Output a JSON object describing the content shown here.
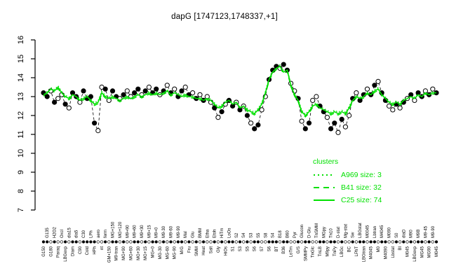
{
  "title": "dapG [1747123,1748337,+1]",
  "legend": {
    "title": "clusters",
    "entries": [
      {
        "label": "A969 size: 3",
        "name": "A969",
        "size": 3,
        "style": "dotted"
      },
      {
        "label": "B41 size: 32",
        "name": "B41",
        "size": 32,
        "style": "dashed"
      },
      {
        "label": "C25 size: 74",
        "name": "C25",
        "size": 74,
        "style": "solid"
      }
    ],
    "color": "#00e000"
  },
  "chart_data": {
    "type": "line",
    "title": "dapG [1747123,1748337,+1]",
    "xlabel": "",
    "ylabel": "",
    "ylim": [
      7,
      16
    ],
    "yticks": [
      7,
      8,
      9,
      10,
      11,
      12,
      13,
      14,
      15,
      16
    ],
    "grid": false,
    "legend_position": "right-bottom",
    "colors": {
      "gene_points": "#000000",
      "cluster_lines": "#00e000"
    },
    "categories": [
      "G150",
      "G135",
      "G180",
      "H2O2",
      "Paraq",
      "Oxcl",
      "LBGexp",
      "dia15",
      "Diam",
      "dia5",
      "C90",
      "C30",
      "Cold",
      "LPh",
      "HPh",
      "aero",
      "nt",
      "ferm",
      "GM+150",
      "MG+150",
      "M9-tran",
      "MG+120",
      "MG+90",
      "M9+90",
      "MG+60",
      "M9+60",
      "MG+30",
      "M9+30",
      "MG+15",
      "M9+15",
      "MG+0",
      "M9+0",
      "MG-30",
      "M9-30",
      "MG-60",
      "M9-60",
      "MG-90",
      "M9-90",
      "M/G",
      "Mal",
      "Fru",
      "Glu",
      "SMM",
      "BMM",
      "Heat",
      "Etha",
      "Salt",
      "Etoh",
      "Gly",
      "HiTm",
      "HiOs",
      "LoOs",
      "S1",
      "S2",
      "S3",
      "S4",
      "S5",
      "S3",
      "S6",
      "S5",
      "S7",
      "S8",
      "S6",
      "S4",
      "BT",
      "B18",
      "B36",
      "B60",
      "LoTm",
      "Pyr",
      "G/S",
      "Glucon",
      "SMMPy",
      "D-Glu",
      "TnGlc",
      "TnSMM",
      "TnLB",
      "MGpy",
      "M9py",
      "Tn10",
      "TnPy",
      "D-stat",
      "LBGc",
      "Mg-stat",
      "BC",
      "Sw",
      "LPhT",
      "LBGstat",
      "LBGtran",
      "M0045",
      "M4045",
      "Lbtran",
      "M0",
      "M4045",
      "M4090",
      "M090",
      "Lbstat",
      "S0",
      "BI",
      "diaD",
      "M045",
      "M90",
      "LBGexp",
      "M9B",
      "MG45",
      "M9-45",
      "MG90",
      "M9-90",
      "M045"
    ],
    "series": [
      {
        "name": "gene dapG (points)",
        "marker": "circle-filled-or-open",
        "values": [
          13.2,
          13.0,
          13.3,
          12.7,
          12.9,
          13.1,
          12.6,
          12.4,
          13.2,
          13.0,
          12.7,
          13.3,
          12.9,
          13.0,
          11.6,
          11.2,
          13.5,
          13.4,
          12.8,
          13.3,
          13.0,
          12.9,
          13.1,
          13.3,
          13.0,
          13.2,
          13.4,
          13.1,
          13.3,
          13.5,
          13.2,
          13.4,
          13.1,
          13.3,
          13.6,
          13.2,
          13.4,
          13.0,
          13.3,
          13.5,
          13.1,
          13.2,
          12.9,
          13.1,
          12.8,
          13.0,
          12.7,
          12.4,
          11.9,
          12.2,
          12.6,
          12.8,
          12.5,
          12.7,
          12.3,
          12.5,
          12.0,
          11.6,
          11.3,
          11.5,
          12.3,
          13.0,
          13.9,
          14.4,
          14.6,
          14.5,
          14.7,
          14.4,
          13.7,
          13.3,
          12.9,
          11.7,
          11.3,
          11.6,
          12.8,
          13.0,
          12.5,
          12.2,
          11.9,
          11.3,
          11.6,
          11.1,
          11.8,
          11.4,
          12.0,
          12.9,
          13.2,
          12.8,
          13.1,
          13.4,
          13.1,
          13.6,
          13.8,
          13.2,
          12.8,
          12.5,
          12.3,
          12.6,
          12.4,
          12.7,
          12.9,
          13.1,
          12.8,
          13.2,
          13.0,
          13.3,
          13.1,
          13.4,
          13.2
        ],
        "point_filled": [
          1,
          1,
          0,
          1,
          0,
          0,
          1,
          0,
          1,
          1,
          0,
          1,
          1,
          1,
          1,
          0,
          0,
          1,
          0,
          1,
          1,
          0,
          1,
          0,
          0,
          1,
          1,
          0,
          1,
          0,
          1,
          1,
          0,
          1,
          0,
          1,
          0,
          1,
          1,
          0,
          1,
          0,
          1,
          0,
          1,
          0,
          0,
          1,
          0,
          1,
          0,
          1,
          1,
          0,
          1,
          0,
          1,
          0,
          1,
          1,
          0,
          0,
          1,
          1,
          1,
          0,
          1,
          1,
          0,
          0,
          1,
          0,
          1,
          1,
          0,
          0,
          1,
          1,
          0,
          1,
          1,
          0,
          1,
          0,
          0,
          1,
          0,
          1,
          1,
          0,
          1,
          1,
          0,
          1,
          1,
          0,
          0,
          1,
          0,
          1,
          0,
          1,
          0,
          1,
          1,
          0,
          1,
          0,
          1
        ]
      },
      {
        "name": "cluster mean (C25 / B41 / A969, overlapping)",
        "values": [
          13.1,
          13.2,
          13.4,
          13.3,
          13.5,
          13.2,
          13.0,
          12.9,
          13.1,
          13.0,
          12.8,
          12.9,
          13.0,
          12.8,
          12.6,
          12.7,
          13.2,
          13.0,
          12.9,
          13.0,
          12.9,
          12.8,
          12.9,
          13.0,
          12.9,
          13.0,
          13.1,
          13.0,
          13.1,
          13.2,
          13.1,
          13.2,
          13.1,
          13.2,
          13.3,
          13.1,
          13.2,
          13.1,
          13.0,
          13.1,
          13.0,
          13.0,
          12.9,
          12.9,
          12.8,
          12.9,
          12.8,
          12.6,
          12.4,
          12.5,
          12.7,
          12.8,
          12.6,
          12.7,
          12.4,
          12.5,
          12.3,
          12.2,
          12.1,
          12.3,
          12.6,
          13.2,
          13.9,
          14.3,
          14.5,
          14.6,
          14.3,
          14.4,
          13.6,
          13.1,
          12.8,
          12.2,
          12.0,
          12.2,
          12.5,
          12.6,
          12.4,
          12.3,
          12.2,
          12.1,
          12.2,
          12.1,
          12.2,
          12.1,
          12.4,
          12.8,
          13.0,
          12.9,
          13.0,
          13.2,
          13.1,
          13.3,
          13.4,
          13.1,
          12.9,
          12.7,
          12.6,
          12.7,
          12.6,
          12.8,
          12.9,
          13.0,
          12.9,
          13.1,
          13.0,
          13.2,
          13.1,
          13.2,
          13.2
        ]
      }
    ]
  }
}
